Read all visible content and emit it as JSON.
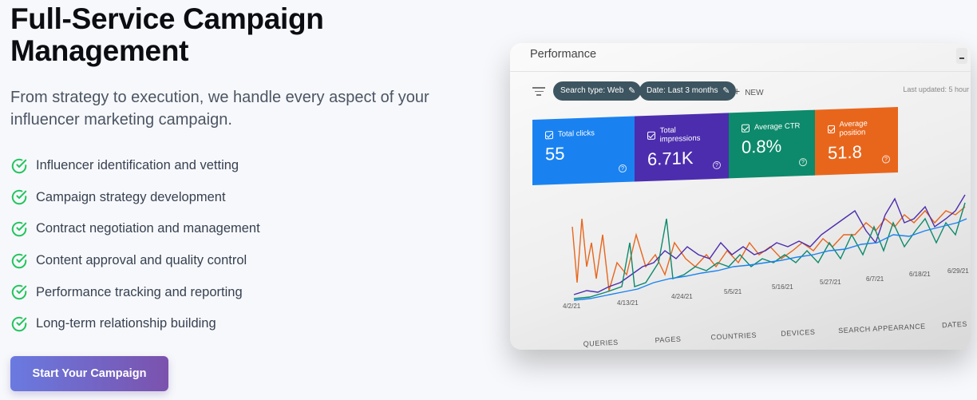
{
  "hero": {
    "title_line1": "Full-Service Campaign",
    "title_line2": "Management",
    "subtitle_line1": "From strategy to execution, we handle every aspect of your",
    "subtitle_line2": "influencer marketing campaign.",
    "features": [
      "Influencer identification and vetting",
      "Campaign strategy development",
      "Contract negotiation and management",
      "Content approval and quality control",
      "Performance tracking and reporting",
      "Long-term relationship building"
    ],
    "cta_label": "Start Your Campaign",
    "check_icon": "check-circle-icon",
    "accent_color": "#22c55e"
  },
  "screenshot": {
    "title": "Performance",
    "chips": [
      "Search type: Web",
      "Date: Last 3 months"
    ],
    "new_label": "NEW",
    "updated": "Last updated: 5 hour",
    "cards": [
      {
        "label": "Total clicks",
        "value": "55",
        "color": "#1a82f0"
      },
      {
        "label": "Total impressions",
        "value": "6.71K",
        "color": "#4c2dae"
      },
      {
        "label": "Average CTR",
        "value": "0.8%",
        "color": "#0d8a6b"
      },
      {
        "label": "Average position",
        "value": "51.8",
        "color": "#e8661c"
      }
    ],
    "date_ticks": [
      "4/2/21",
      "4/13/21",
      "4/24/21",
      "5/5/21",
      "5/16/21",
      "5/27/21",
      "6/7/21",
      "6/18/21",
      "6/29/21"
    ],
    "tabs": [
      "QUERIES",
      "PAGES",
      "COUNTRIES",
      "DEVICES",
      "SEARCH APPEARANCE",
      "DATES"
    ]
  }
}
